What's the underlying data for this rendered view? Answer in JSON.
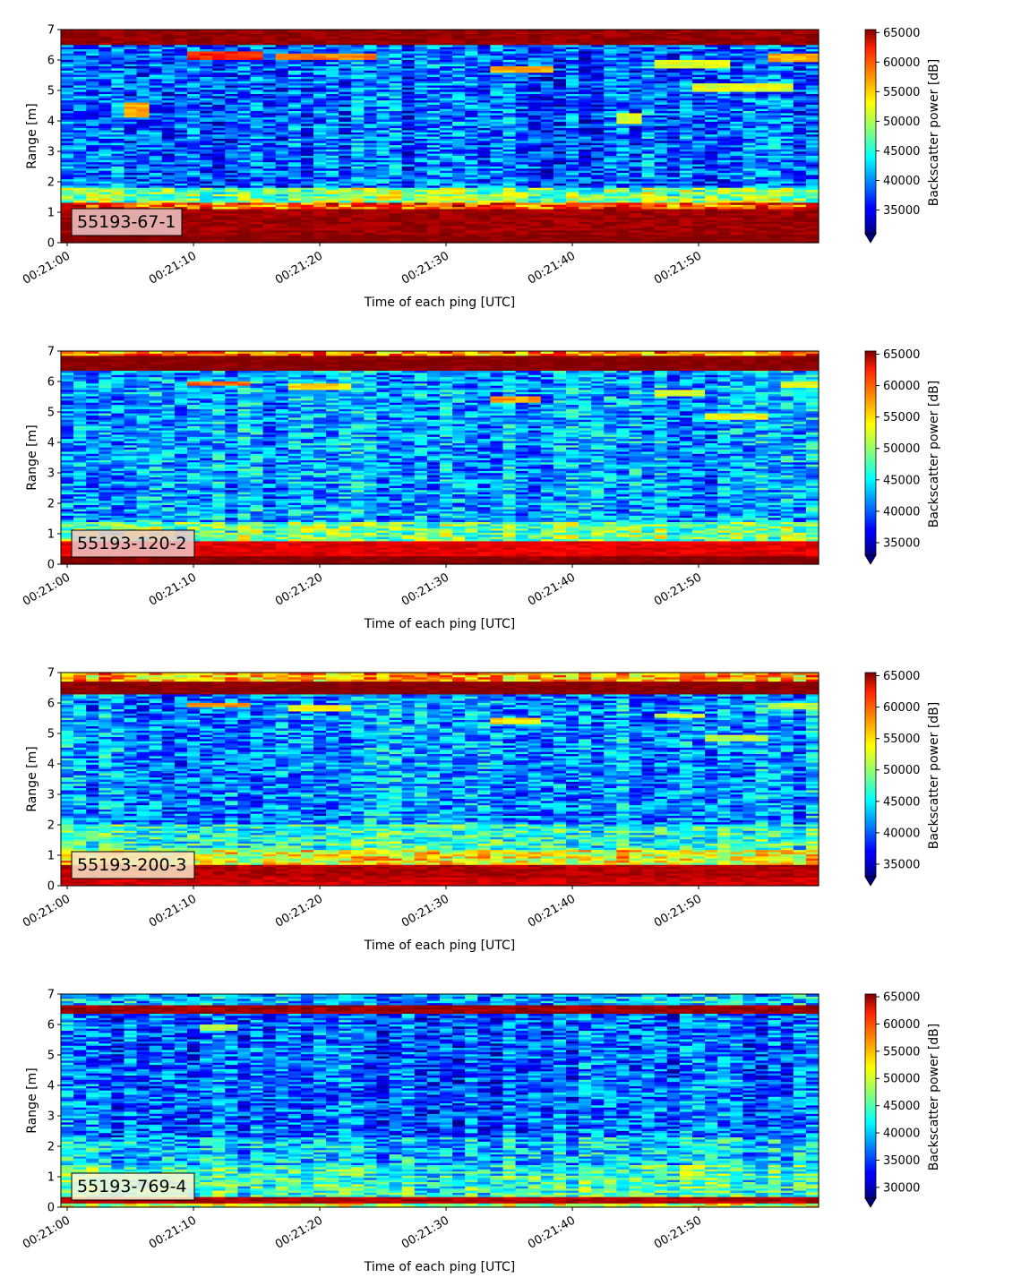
{
  "chart_data": [
    {
      "type": "heatmap",
      "panel_label": "55193-67-1",
      "xlabel": "Time of each ping [UTC]",
      "ylabel": "Range [m]",
      "x_ticks": [
        "00:21:00",
        "00:21:10",
        "00:21:20",
        "00:21:30",
        "00:21:40",
        "00:21:50"
      ],
      "x_range": [
        "00:20:59.5",
        "00:21:59.5"
      ],
      "y_ticks": [
        0,
        1,
        2,
        3,
        4,
        5,
        6,
        7
      ],
      "ylim": [
        0,
        7
      ],
      "colorbar_label": "Backscatter power [dB]",
      "colorbar_ticks": [
        35000,
        40000,
        45000,
        50000,
        55000,
        60000,
        65000
      ],
      "clim": [
        31000,
        65500
      ],
      "colormap": "jet",
      "colorbar_extend": "min",
      "ping_count": 60,
      "bands": [
        {
          "range": [
            0,
            0.25
          ],
          "level": 1.0
        },
        {
          "range": [
            0.25,
            1.1
          ],
          "level": 0.97
        },
        {
          "range": [
            1.1,
            1.3
          ],
          "level": 0.8
        },
        {
          "range": [
            1.3,
            1.8
          ],
          "level": 0.5
        },
        {
          "range": [
            1.8,
            6.5
          ],
          "level": 0.22
        },
        {
          "range": [
            6.5,
            7.0
          ],
          "level": 0.98
        }
      ],
      "features": [
        {
          "t": [
            10,
            15
          ],
          "range": [
            6.05,
            6.3
          ],
          "level": 0.85
        },
        {
          "t": [
            17,
            24
          ],
          "range": [
            6.0,
            6.25
          ],
          "level": 0.75
        },
        {
          "t": [
            34,
            38
          ],
          "range": [
            5.6,
            5.8
          ],
          "level": 0.7
        },
        {
          "t": [
            47,
            52
          ],
          "range": [
            5.75,
            6.0
          ],
          "level": 0.6
        },
        {
          "t": [
            50,
            57
          ],
          "range": [
            4.95,
            5.25
          ],
          "level": 0.6
        },
        {
          "t": [
            56,
            59
          ],
          "range": [
            5.95,
            6.2
          ],
          "level": 0.7
        },
        {
          "t": [
            5,
            6
          ],
          "range": [
            4.1,
            4.6
          ],
          "level": 0.7
        },
        {
          "t": [
            44,
            45
          ],
          "range": [
            3.9,
            4.3
          ],
          "level": 0.6
        }
      ]
    },
    {
      "type": "heatmap",
      "panel_label": "55193-120-2",
      "xlabel": "Time of each ping [UTC]",
      "ylabel": "Range [m]",
      "x_ticks": [
        "00:21:00",
        "00:21:10",
        "00:21:20",
        "00:21:30",
        "00:21:40",
        "00:21:50"
      ],
      "x_range": [
        "00:20:59.5",
        "00:21:59.5"
      ],
      "y_ticks": [
        0,
        1,
        2,
        3,
        4,
        5,
        6,
        7
      ],
      "ylim": [
        0,
        7
      ],
      "colorbar_label": "Backscatter power [dB]",
      "colorbar_ticks": [
        35000,
        40000,
        45000,
        50000,
        55000,
        60000,
        65000
      ],
      "clim": [
        33000,
        65500
      ],
      "colormap": "jet",
      "colorbar_extend": "min",
      "ping_count": 60,
      "bands": [
        {
          "range": [
            0,
            0.3
          ],
          "level": 1.0
        },
        {
          "range": [
            0.3,
            0.8
          ],
          "level": 0.9
        },
        {
          "range": [
            0.8,
            1.4
          ],
          "level": 0.48
        },
        {
          "range": [
            1.4,
            6.4
          ],
          "level": 0.28
        },
        {
          "range": [
            6.4,
            6.85
          ],
          "level": 1.0
        },
        {
          "range": [
            6.85,
            7.0
          ],
          "level": 0.75
        }
      ],
      "features": [
        {
          "t": [
            10,
            14
          ],
          "range": [
            5.85,
            6.05
          ],
          "level": 0.78
        },
        {
          "t": [
            18,
            22
          ],
          "range": [
            5.75,
            5.95
          ],
          "level": 0.65
        },
        {
          "t": [
            34,
            37
          ],
          "range": [
            5.35,
            5.55
          ],
          "level": 0.72
        },
        {
          "t": [
            47,
            50
          ],
          "range": [
            5.55,
            5.75
          ],
          "level": 0.6
        },
        {
          "t": [
            51,
            55
          ],
          "range": [
            4.75,
            4.95
          ],
          "level": 0.62
        },
        {
          "t": [
            57,
            59
          ],
          "range": [
            5.8,
            6.0
          ],
          "level": 0.6
        }
      ]
    },
    {
      "type": "heatmap",
      "panel_label": "55193-200-3",
      "xlabel": "Time of each ping [UTC]",
      "ylabel": "Range [m]",
      "x_ticks": [
        "00:21:00",
        "00:21:10",
        "00:21:20",
        "00:21:30",
        "00:21:40",
        "00:21:50"
      ],
      "x_range": [
        "00:20:59.5",
        "00:21:59.5"
      ],
      "y_ticks": [
        0,
        1,
        2,
        3,
        4,
        5,
        6,
        7
      ],
      "ylim": [
        0,
        7
      ],
      "colorbar_label": "Backscatter power [dB]",
      "colorbar_ticks": [
        35000,
        40000,
        45000,
        50000,
        55000,
        60000,
        65000
      ],
      "clim": [
        33000,
        65500
      ],
      "colormap": "jet",
      "colorbar_extend": "min",
      "ping_count": 60,
      "bands": [
        {
          "range": [
            0,
            0.25
          ],
          "level": 0.92
        },
        {
          "range": [
            0.25,
            0.7
          ],
          "level": 0.95
        },
        {
          "range": [
            0.7,
            1.2
          ],
          "level": 0.62
        },
        {
          "range": [
            1.2,
            2.0
          ],
          "level": 0.42
        },
        {
          "range": [
            2.0,
            6.3
          ],
          "level": 0.27
        },
        {
          "range": [
            6.3,
            6.7
          ],
          "level": 1.0
        },
        {
          "range": [
            6.7,
            7.0
          ],
          "level": 0.7
        }
      ],
      "features": [
        {
          "t": [
            10,
            14
          ],
          "range": [
            5.85,
            6.05
          ],
          "level": 0.75
        },
        {
          "t": [
            18,
            22
          ],
          "range": [
            5.75,
            5.95
          ],
          "level": 0.62
        },
        {
          "t": [
            34,
            37
          ],
          "range": [
            5.35,
            5.55
          ],
          "level": 0.65
        },
        {
          "t": [
            47,
            50
          ],
          "range": [
            5.5,
            5.7
          ],
          "level": 0.58
        },
        {
          "t": [
            51,
            55
          ],
          "range": [
            4.75,
            4.95
          ],
          "level": 0.55
        },
        {
          "t": [
            56,
            59
          ],
          "range": [
            5.8,
            6.0
          ],
          "level": 0.55
        }
      ]
    },
    {
      "type": "heatmap",
      "panel_label": "55193-769-4",
      "xlabel": "Time of each ping [UTC]",
      "ylabel": "Range [m]",
      "x_ticks": [
        "00:21:00",
        "00:21:10",
        "00:21:20",
        "00:21:30",
        "00:21:40",
        "00:21:50"
      ],
      "x_range": [
        "00:20:59.5",
        "00:21:59.5"
      ],
      "y_ticks": [
        0,
        1,
        2,
        3,
        4,
        5,
        6,
        7
      ],
      "ylim": [
        0,
        7
      ],
      "colorbar_label": "Backscatter power [dB]",
      "colorbar_ticks": [
        30000,
        35000,
        40000,
        45000,
        50000,
        55000,
        60000,
        65000
      ],
      "clim": [
        28000,
        65500
      ],
      "colormap": "jet",
      "colorbar_extend": "min",
      "ping_count": 60,
      "bands": [
        {
          "range": [
            0,
            0.12
          ],
          "level": 0.55
        },
        {
          "range": [
            0.12,
            0.35
          ],
          "level": 0.95
        },
        {
          "range": [
            0.35,
            1.4
          ],
          "level": 0.42
        },
        {
          "range": [
            1.4,
            2.3
          ],
          "level": 0.32
        },
        {
          "range": [
            2.3,
            6.35
          ],
          "level": 0.22
        },
        {
          "range": [
            6.35,
            6.65
          ],
          "level": 0.97
        },
        {
          "range": [
            6.65,
            7.0
          ],
          "level": 0.3
        }
      ],
      "features": [
        {
          "t": [
            11,
            13
          ],
          "range": [
            5.8,
            6.0
          ],
          "level": 0.55
        }
      ]
    }
  ]
}
